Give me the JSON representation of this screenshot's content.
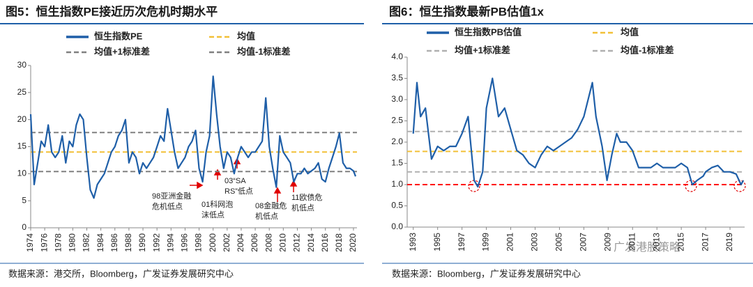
{
  "chart_data": [
    {
      "type": "line",
      "title": "图5：恒生指数PE接近历次危机时期水平",
      "x": [
        1974,
        1974.5,
        1975,
        1975.5,
        1976,
        1976.5,
        1977,
        1977.5,
        1978,
        1978.5,
        1979,
        1979.5,
        1980,
        1980.5,
        1981,
        1981.5,
        1982,
        1982.5,
        1983,
        1983.5,
        1984,
        1984.5,
        1985,
        1985.5,
        1986,
        1986.5,
        1987,
        1987.5,
        1988,
        1988.5,
        1989,
        1989.5,
        1990,
        1990.5,
        1991,
        1991.5,
        1992,
        1992.5,
        1993,
        1993.5,
        1994,
        1994.5,
        1995,
        1995.5,
        1996,
        1996.5,
        1997,
        1997.5,
        1998,
        1998.5,
        1999,
        1999.5,
        2000,
        2000.5,
        2001,
        2001.5,
        2002,
        2002.5,
        2003,
        2003.5,
        2004,
        2004.5,
        2005,
        2005.5,
        2006,
        2006.5,
        2007,
        2007.5,
        2008,
        2008.5,
        2009,
        2009.5,
        2010,
        2010.5,
        2011,
        2011.5,
        2012,
        2012.5,
        2013,
        2013.5,
        2014,
        2014.5,
        2015,
        2015.5,
        2016,
        2016.5,
        2017,
        2017.5,
        2018,
        2018.5,
        2019,
        2019.5,
        2020,
        2020.3
      ],
      "series": [
        {
          "name": "恒生指数PE",
          "color": "#1f5fa8",
          "values": [
            21,
            8,
            12,
            16,
            15,
            19,
            14,
            13,
            14,
            17,
            12,
            16,
            15,
            19,
            21,
            20,
            13,
            7,
            5.5,
            8,
            9,
            10,
            12,
            14,
            15,
            17,
            18,
            20,
            12,
            14,
            13,
            10,
            12,
            11,
            12,
            13,
            15,
            17,
            16,
            22,
            18,
            14,
            11,
            12,
            13,
            15,
            16,
            18,
            11,
            8.5,
            14,
            17,
            28,
            21,
            15,
            11,
            14,
            13,
            10,
            13,
            15,
            14,
            13,
            14,
            14,
            15,
            16,
            24,
            15,
            11,
            7.5,
            17,
            14,
            13,
            12,
            8.5,
            10,
            10,
            11,
            10,
            10.5,
            11,
            12,
            9,
            8.5,
            11,
            13,
            15,
            17.5,
            12,
            11,
            11,
            10.5,
            9.5
          ]
        }
      ],
      "reference_lines": [
        {
          "name": "均值",
          "color": "#f2c037",
          "value": 14
        },
        {
          "name": "均值+1标准差",
          "color": "#808080",
          "value": 17.6
        },
        {
          "name": "均值-1标准差",
          "color": "#808080",
          "value": 10.4
        }
      ],
      "xlim": [
        1974,
        2020.5
      ],
      "xticks": [
        1974,
        1976,
        1978,
        1980,
        1982,
        1984,
        1986,
        1988,
        1990,
        1992,
        1994,
        1996,
        1998,
        2000,
        2002,
        2004,
        2006,
        2008,
        2010,
        2012,
        2014,
        2016,
        2018,
        2020
      ],
      "ylim": [
        0,
        30
      ],
      "yticks": [
        0,
        5,
        10,
        15,
        20,
        25,
        30
      ],
      "annotations": [
        {
          "text": [
            "98亚洲金融",
            "危机低点"
          ]
        },
        {
          "text": [
            "01科网泡",
            "沫低点"
          ]
        },
        {
          "text": [
            "03“SA",
            "RS”低点"
          ]
        },
        {
          "text": [
            "08金融危",
            "机低点"
          ]
        },
        {
          "text": [
            "11欧债危",
            "机低点"
          ]
        }
      ],
      "source": "数据来源：港交所，Bloomberg，广发证券发展研究中心"
    },
    {
      "type": "line",
      "title": "图6：恒生指数最新PB估值1x",
      "x": [
        1993,
        1993.3,
        1993.6,
        1994,
        1994.5,
        1995,
        1995.5,
        1996,
        1996.5,
        1997,
        1997.5,
        1998,
        1998.3,
        1998.7,
        1999,
        1999.5,
        2000,
        2000.5,
        2001,
        2001.5,
        2002,
        2002.5,
        2003,
        2003.5,
        2004,
        2004.5,
        2005,
        2005.5,
        2006,
        2006.5,
        2007,
        2007.7,
        2008,
        2008.5,
        2008.9,
        2009.3,
        2009.7,
        2010,
        2010.5,
        2011,
        2011.5,
        2012,
        2012.5,
        2013,
        2013.5,
        2014,
        2014.5,
        2015,
        2015.5,
        2015.9,
        2016.3,
        2016.8,
        2017,
        2017.5,
        2018,
        2018.5,
        2019,
        2019.5,
        2019.9,
        2020.1
      ],
      "series": [
        {
          "name": "恒生指数PB估值",
          "color": "#1f5fa8",
          "values": [
            2.2,
            3.4,
            2.6,
            2.8,
            1.6,
            1.9,
            1.8,
            1.9,
            1.9,
            2.2,
            2.6,
            1.1,
            0.95,
            1.3,
            2.8,
            3.5,
            2.6,
            2.8,
            2.3,
            1.8,
            1.7,
            1.5,
            1.4,
            1.7,
            1.9,
            1.8,
            1.9,
            2.0,
            2.1,
            2.3,
            2.6,
            3.4,
            2.6,
            1.9,
            1.1,
            1.7,
            2.2,
            2.0,
            2.0,
            1.8,
            1.4,
            1.4,
            1.4,
            1.5,
            1.4,
            1.4,
            1.4,
            1.5,
            1.4,
            1.0,
            1.1,
            1.2,
            1.3,
            1.4,
            1.45,
            1.3,
            1.3,
            1.25,
            1.0,
            1.1
          ]
        }
      ],
      "reference_lines": [
        {
          "name": "均值",
          "color": "#f2c037",
          "value": 1.78
        },
        {
          "name": "均值+1标准差",
          "color": "#b0b0b0",
          "value": 2.25
        },
        {
          "name": "均值-1标准差",
          "color": "#b0b0b0",
          "value": 1.3
        },
        {
          "color": "#ff0000",
          "value": 1
        }
      ],
      "xlim": [
        1992.5,
        2020.2
      ],
      "xticks": [
        1993,
        1995,
        1997,
        1999,
        2001,
        2003,
        2005,
        2007,
        2009,
        2011,
        2013,
        2015,
        2017,
        2019
      ],
      "ylim": [
        0,
        4
      ],
      "yticks": [
        {
          "value": 0,
          "label": "0.0"
        },
        0.5,
        {
          "value": 1,
          "label": "1.0"
        },
        1.5,
        {
          "value": 2,
          "label": "2.0"
        },
        2.5,
        {
          "value": 3,
          "label": "3.0"
        },
        3.5,
        {
          "value": 4,
          "label": "4.0"
        }
      ],
      "source": "数据来源：Bloomberg，广发证券发展研究中心"
    }
  ],
  "watermark": "广发港股策略"
}
